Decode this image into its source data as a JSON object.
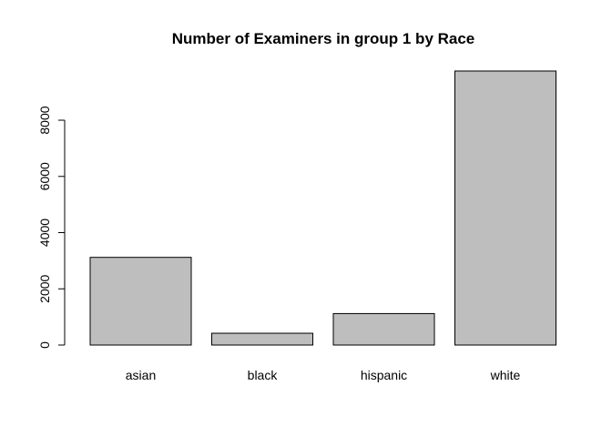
{
  "chart_data": {
    "type": "bar",
    "title": "Number of Examiners in group 1 by Race",
    "xlabel": "",
    "ylabel": "",
    "categories": [
      "asian",
      "black",
      "hispanic",
      "white"
    ],
    "values": [
      3120,
      420,
      1120,
      9750
    ],
    "ylim": [
      0,
      9750
    ],
    "yticks": [
      0,
      2000,
      4000,
      6000,
      8000
    ],
    "grid": false,
    "legend": "none",
    "bar_color": "#bebebe",
    "bar_border_color": "#000000"
  }
}
